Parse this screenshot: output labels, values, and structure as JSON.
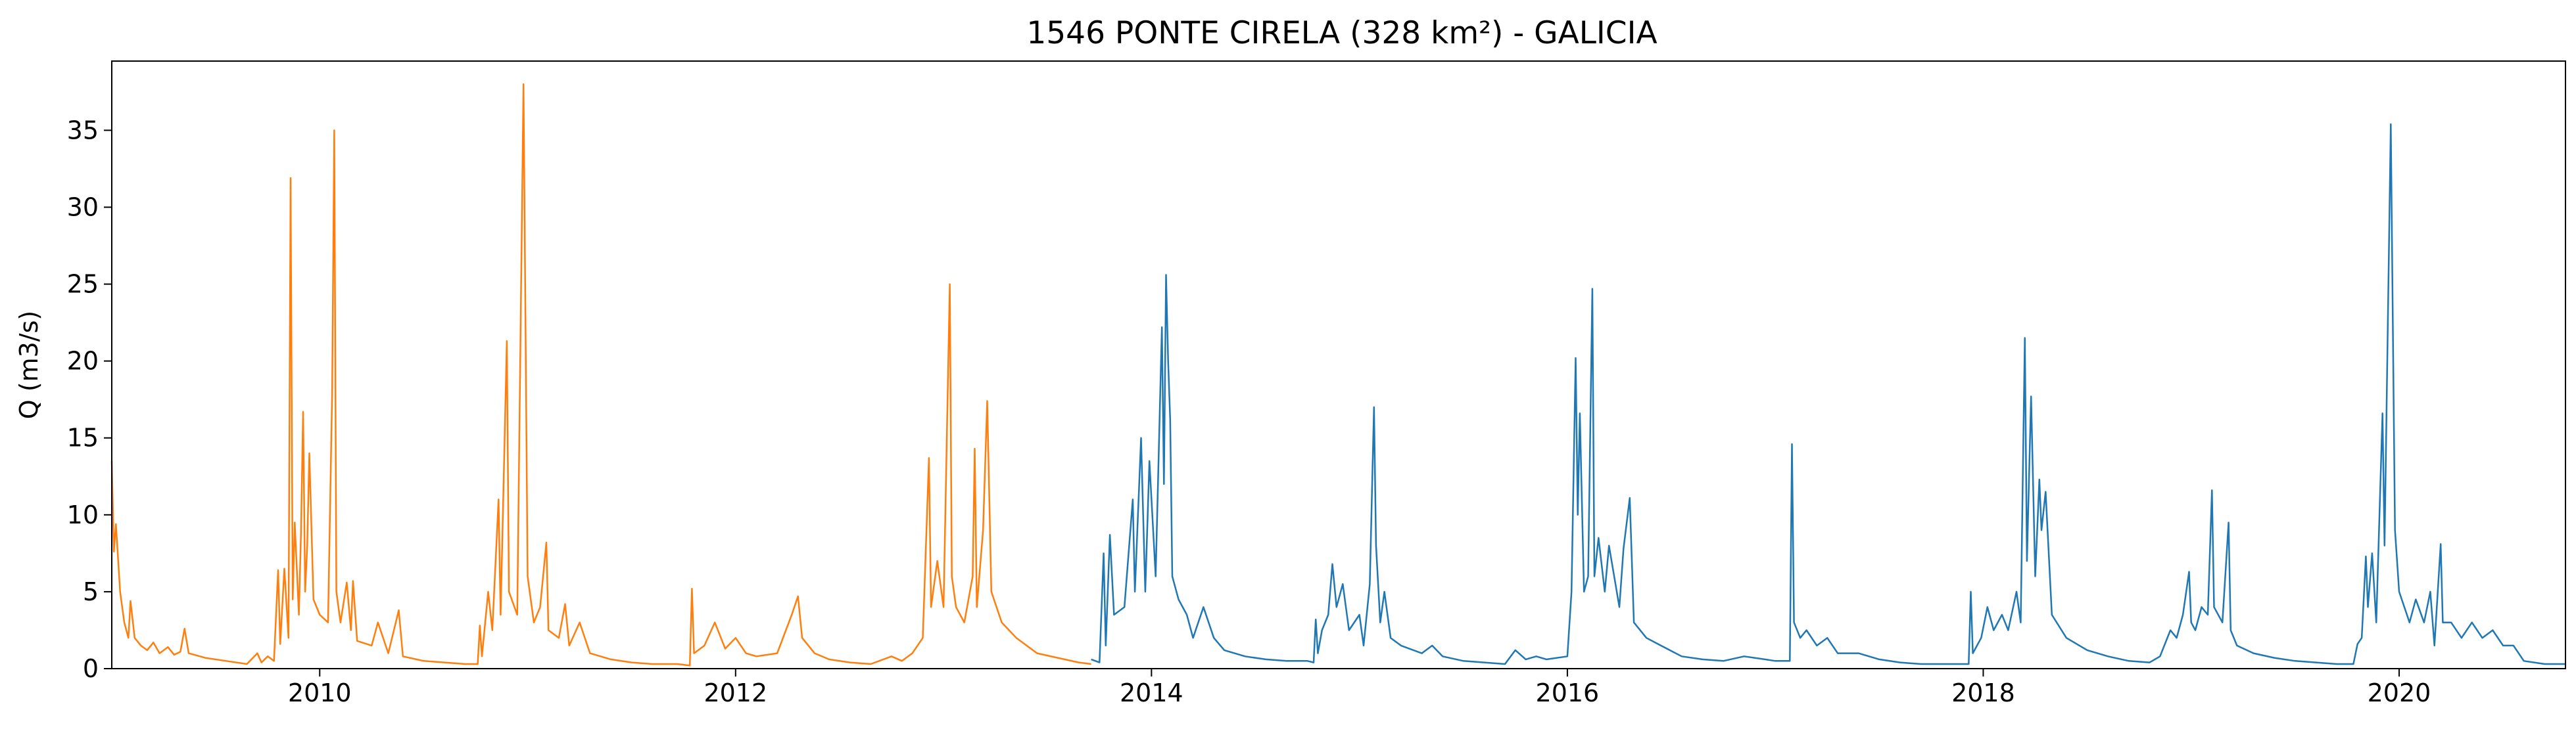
{
  "chart_data": {
    "type": "line",
    "title": "1546 PONTE CIRELA (328 km²) - GALICIA",
    "ylabel": "Q (m3/s)",
    "xlabel": "",
    "xlim": [
      2009.0,
      2020.8
    ],
    "ylim": [
      0,
      39.5
    ],
    "grid": false,
    "legend": "none",
    "x_ticks": [
      2010,
      2012,
      2014,
      2016,
      2018,
      2020
    ],
    "x_tick_labels": [
      "2010",
      "2012",
      "2014",
      "2016",
      "2018",
      "2020"
    ],
    "y_ticks": [
      0,
      5,
      10,
      15,
      20,
      25,
      30,
      35
    ],
    "y_tick_labels": [
      "0",
      "5",
      "10",
      "15",
      "20",
      "25",
      "30",
      "35"
    ],
    "series": [
      {
        "color": "#ff7f0e",
        "points": [
          [
            2009.0,
            13.5
          ],
          [
            2009.01,
            7.6
          ],
          [
            2009.02,
            9.4
          ],
          [
            2009.04,
            5.0
          ],
          [
            2009.06,
            3.0
          ],
          [
            2009.08,
            2.0
          ],
          [
            2009.09,
            4.4
          ],
          [
            2009.11,
            2.0
          ],
          [
            2009.14,
            1.5
          ],
          [
            2009.17,
            1.2
          ],
          [
            2009.2,
            1.7
          ],
          [
            2009.23,
            1.0
          ],
          [
            2009.27,
            1.4
          ],
          [
            2009.3,
            0.9
          ],
          [
            2009.33,
            1.1
          ],
          [
            2009.35,
            2.6
          ],
          [
            2009.37,
            1.0
          ],
          [
            2009.45,
            0.7
          ],
          [
            2009.55,
            0.5
          ],
          [
            2009.65,
            0.3
          ],
          [
            2009.7,
            1.0
          ],
          [
            2009.72,
            0.4
          ],
          [
            2009.75,
            0.8
          ],
          [
            2009.78,
            0.5
          ],
          [
            2009.8,
            6.4
          ],
          [
            2009.81,
            1.6
          ],
          [
            2009.83,
            6.5
          ],
          [
            2009.85,
            2.0
          ],
          [
            2009.86,
            31.9
          ],
          [
            2009.87,
            4.5
          ],
          [
            2009.88,
            9.5
          ],
          [
            2009.9,
            3.5
          ],
          [
            2009.91,
            8.8
          ],
          [
            2009.92,
            16.7
          ],
          [
            2009.93,
            5.0
          ],
          [
            2009.94,
            8.0
          ],
          [
            2009.95,
            14.0
          ],
          [
            2009.97,
            4.5
          ],
          [
            2010.0,
            3.5
          ],
          [
            2010.04,
            3.0
          ],
          [
            2010.06,
            18.0
          ],
          [
            2010.07,
            35.0
          ],
          [
            2010.08,
            5.0
          ],
          [
            2010.1,
            3.0
          ],
          [
            2010.13,
            5.6
          ],
          [
            2010.15,
            2.5
          ],
          [
            2010.16,
            5.7
          ],
          [
            2010.18,
            1.8
          ],
          [
            2010.25,
            1.5
          ],
          [
            2010.28,
            3.0
          ],
          [
            2010.33,
            1.0
          ],
          [
            2010.38,
            3.8
          ],
          [
            2010.4,
            0.8
          ],
          [
            2010.5,
            0.5
          ],
          [
            2010.6,
            0.4
          ],
          [
            2010.7,
            0.3
          ],
          [
            2010.76,
            0.3
          ],
          [
            2010.77,
            2.8
          ],
          [
            2010.78,
            0.8
          ],
          [
            2010.81,
            5.0
          ],
          [
            2010.83,
            2.5
          ],
          [
            2010.86,
            11.0
          ],
          [
            2010.87,
            3.5
          ],
          [
            2010.9,
            21.3
          ],
          [
            2010.91,
            5.0
          ],
          [
            2010.95,
            3.5
          ],
          [
            2010.98,
            38.0
          ],
          [
            2011.0,
            6.0
          ],
          [
            2011.03,
            3.0
          ],
          [
            2011.06,
            4.0
          ],
          [
            2011.09,
            8.2
          ],
          [
            2011.1,
            2.5
          ],
          [
            2011.15,
            2.0
          ],
          [
            2011.18,
            4.2
          ],
          [
            2011.2,
            1.5
          ],
          [
            2011.25,
            3.0
          ],
          [
            2011.3,
            1.0
          ],
          [
            2011.4,
            0.6
          ],
          [
            2011.5,
            0.4
          ],
          [
            2011.6,
            0.3
          ],
          [
            2011.72,
            0.3
          ],
          [
            2011.78,
            0.2
          ],
          [
            2011.79,
            5.2
          ],
          [
            2011.8,
            1.0
          ],
          [
            2011.85,
            1.5
          ],
          [
            2011.9,
            3.0
          ],
          [
            2011.95,
            1.3
          ],
          [
            2012.0,
            2.0
          ],
          [
            2012.05,
            1.0
          ],
          [
            2012.1,
            0.8
          ],
          [
            2012.2,
            1.0
          ],
          [
            2012.27,
            3.5
          ],
          [
            2012.3,
            4.7
          ],
          [
            2012.32,
            2.0
          ],
          [
            2012.38,
            1.0
          ],
          [
            2012.45,
            0.6
          ],
          [
            2012.55,
            0.4
          ],
          [
            2012.65,
            0.3
          ],
          [
            2012.75,
            0.8
          ],
          [
            2012.8,
            0.5
          ],
          [
            2012.85,
            1.0
          ],
          [
            2012.9,
            2.0
          ],
          [
            2012.93,
            13.7
          ],
          [
            2012.94,
            4.0
          ],
          [
            2012.97,
            7.0
          ],
          [
            2013.0,
            4.0
          ],
          [
            2013.03,
            25.0
          ],
          [
            2013.04,
            6.0
          ],
          [
            2013.06,
            4.0
          ],
          [
            2013.1,
            3.0
          ],
          [
            2013.14,
            6.0
          ],
          [
            2013.15,
            14.3
          ],
          [
            2013.16,
            4.0
          ],
          [
            2013.19,
            9.0
          ],
          [
            2013.21,
            17.4
          ],
          [
            2013.23,
            5.0
          ],
          [
            2013.28,
            3.0
          ],
          [
            2013.35,
            2.0
          ],
          [
            2013.45,
            1.0
          ],
          [
            2013.55,
            0.7
          ],
          [
            2013.65,
            0.4
          ],
          [
            2013.71,
            0.3
          ]
        ]
      },
      {
        "color": "#1f77b4",
        "points": [
          [
            2013.71,
            0.6
          ],
          [
            2013.75,
            0.4
          ],
          [
            2013.77,
            7.5
          ],
          [
            2013.78,
            1.5
          ],
          [
            2013.8,
            8.7
          ],
          [
            2013.82,
            3.5
          ],
          [
            2013.87,
            4.0
          ],
          [
            2013.91,
            11.0
          ],
          [
            2013.92,
            5.0
          ],
          [
            2013.95,
            15.0
          ],
          [
            2013.97,
            5.0
          ],
          [
            2013.99,
            13.5
          ],
          [
            2014.02,
            6.0
          ],
          [
            2014.05,
            22.2
          ],
          [
            2014.06,
            12.0
          ],
          [
            2014.07,
            25.6
          ],
          [
            2014.08,
            20.0
          ],
          [
            2014.09,
            16.2
          ],
          [
            2014.1,
            6.0
          ],
          [
            2014.13,
            4.5
          ],
          [
            2014.17,
            3.5
          ],
          [
            2014.2,
            2.0
          ],
          [
            2014.25,
            4.0
          ],
          [
            2014.3,
            2.0
          ],
          [
            2014.35,
            1.2
          ],
          [
            2014.45,
            0.8
          ],
          [
            2014.55,
            0.6
          ],
          [
            2014.65,
            0.5
          ],
          [
            2014.75,
            0.5
          ],
          [
            2014.78,
            0.4
          ],
          [
            2014.79,
            3.2
          ],
          [
            2014.8,
            1.0
          ],
          [
            2014.82,
            2.5
          ],
          [
            2014.85,
            3.5
          ],
          [
            2014.87,
            6.8
          ],
          [
            2014.89,
            4.0
          ],
          [
            2014.92,
            5.5
          ],
          [
            2014.95,
            2.5
          ],
          [
            2015.0,
            3.5
          ],
          [
            2015.02,
            1.5
          ],
          [
            2015.05,
            5.5
          ],
          [
            2015.07,
            17.0
          ],
          [
            2015.08,
            8.0
          ],
          [
            2015.1,
            3.0
          ],
          [
            2015.12,
            5.0
          ],
          [
            2015.15,
            2.0
          ],
          [
            2015.2,
            1.5
          ],
          [
            2015.3,
            1.0
          ],
          [
            2015.35,
            1.5
          ],
          [
            2015.4,
            0.8
          ],
          [
            2015.5,
            0.5
          ],
          [
            2015.6,
            0.4
          ],
          [
            2015.7,
            0.3
          ],
          [
            2015.75,
            1.2
          ],
          [
            2015.8,
            0.6
          ],
          [
            2015.85,
            0.8
          ],
          [
            2015.9,
            0.6
          ],
          [
            2016.0,
            0.8
          ],
          [
            2016.02,
            5.0
          ],
          [
            2016.04,
            20.2
          ],
          [
            2016.05,
            10.0
          ],
          [
            2016.06,
            16.6
          ],
          [
            2016.08,
            5.0
          ],
          [
            2016.1,
            6.0
          ],
          [
            2016.12,
            24.7
          ],
          [
            2016.13,
            6.0
          ],
          [
            2016.15,
            8.5
          ],
          [
            2016.18,
            5.0
          ],
          [
            2016.2,
            8.0
          ],
          [
            2016.25,
            4.0
          ],
          [
            2016.27,
            7.8
          ],
          [
            2016.3,
            11.1
          ],
          [
            2016.32,
            3.0
          ],
          [
            2016.38,
            2.0
          ],
          [
            2016.45,
            1.5
          ],
          [
            2016.55,
            0.8
          ],
          [
            2016.65,
            0.6
          ],
          [
            2016.75,
            0.5
          ],
          [
            2016.85,
            0.8
          ],
          [
            2016.95,
            0.6
          ],
          [
            2017.0,
            0.5
          ],
          [
            2017.07,
            0.5
          ],
          [
            2017.08,
            14.6
          ],
          [
            2017.09,
            3.0
          ],
          [
            2017.12,
            2.0
          ],
          [
            2017.15,
            2.5
          ],
          [
            2017.2,
            1.5
          ],
          [
            2017.25,
            2.0
          ],
          [
            2017.3,
            1.0
          ],
          [
            2017.4,
            1.0
          ],
          [
            2017.5,
            0.6
          ],
          [
            2017.6,
            0.4
          ],
          [
            2017.7,
            0.3
          ],
          [
            2017.8,
            0.3
          ],
          [
            2017.9,
            0.3
          ],
          [
            2017.93,
            0.3
          ],
          [
            2017.94,
            5.0
          ],
          [
            2017.95,
            1.0
          ],
          [
            2017.99,
            2.0
          ],
          [
            2018.02,
            4.0
          ],
          [
            2018.05,
            2.5
          ],
          [
            2018.09,
            3.5
          ],
          [
            2018.12,
            2.5
          ],
          [
            2018.16,
            5.0
          ],
          [
            2018.18,
            3.0
          ],
          [
            2018.2,
            21.5
          ],
          [
            2018.21,
            7.0
          ],
          [
            2018.23,
            17.7
          ],
          [
            2018.25,
            6.0
          ],
          [
            2018.27,
            12.3
          ],
          [
            2018.28,
            9.0
          ],
          [
            2018.3,
            11.5
          ],
          [
            2018.33,
            3.5
          ],
          [
            2018.4,
            2.0
          ],
          [
            2018.5,
            1.2
          ],
          [
            2018.6,
            0.8
          ],
          [
            2018.7,
            0.5
          ],
          [
            2018.8,
            0.4
          ],
          [
            2018.85,
            0.8
          ],
          [
            2018.9,
            2.5
          ],
          [
            2018.93,
            2.0
          ],
          [
            2018.96,
            3.5
          ],
          [
            2018.99,
            6.3
          ],
          [
            2019.0,
            3.0
          ],
          [
            2019.02,
            2.5
          ],
          [
            2019.05,
            4.0
          ],
          [
            2019.08,
            3.5
          ],
          [
            2019.1,
            11.6
          ],
          [
            2019.11,
            4.0
          ],
          [
            2019.15,
            3.0
          ],
          [
            2019.18,
            9.5
          ],
          [
            2019.19,
            2.5
          ],
          [
            2019.22,
            1.5
          ],
          [
            2019.3,
            1.0
          ],
          [
            2019.4,
            0.7
          ],
          [
            2019.5,
            0.5
          ],
          [
            2019.6,
            0.4
          ],
          [
            2019.7,
            0.3
          ],
          [
            2019.78,
            0.3
          ],
          [
            2019.8,
            1.6
          ],
          [
            2019.82,
            2.0
          ],
          [
            2019.84,
            7.3
          ],
          [
            2019.85,
            4.0
          ],
          [
            2019.87,
            7.5
          ],
          [
            2019.89,
            3.0
          ],
          [
            2019.92,
            16.6
          ],
          [
            2019.93,
            8.0
          ],
          [
            2019.96,
            35.4
          ],
          [
            2019.97,
            22.0
          ],
          [
            2019.98,
            9.0
          ],
          [
            2020.0,
            5.0
          ],
          [
            2020.05,
            3.0
          ],
          [
            2020.08,
            4.5
          ],
          [
            2020.12,
            3.0
          ],
          [
            2020.15,
            5.0
          ],
          [
            2020.17,
            1.5
          ],
          [
            2020.2,
            8.1
          ],
          [
            2020.21,
            3.0
          ],
          [
            2020.25,
            3.0
          ],
          [
            2020.3,
            2.0
          ],
          [
            2020.35,
            3.0
          ],
          [
            2020.4,
            2.0
          ],
          [
            2020.45,
            2.5
          ],
          [
            2020.5,
            1.5
          ],
          [
            2020.55,
            1.5
          ],
          [
            2020.6,
            0.5
          ],
          [
            2020.7,
            0.3
          ],
          [
            2020.8,
            0.3
          ]
        ]
      }
    ]
  }
}
